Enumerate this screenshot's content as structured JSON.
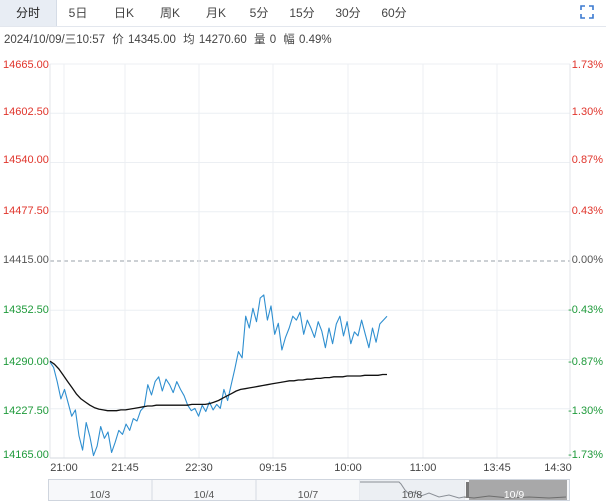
{
  "tabs": [
    "分时",
    "5日",
    "日K",
    "周K",
    "月K",
    "5分",
    "15分",
    "30分",
    "60分"
  ],
  "active_tab": 0,
  "info": {
    "datetime": "2024/10/09/三10:57",
    "price_label": "价",
    "price": "14345.00",
    "avg_label": "均",
    "avg": "14270.60",
    "vol_label": "量",
    "vol": "0",
    "chg_label": "幅",
    "chg": "0.49%"
  },
  "icons": {
    "expand": "expand-icon"
  },
  "colors": {
    "up": "#e0342b",
    "down": "#1f9a3b",
    "flat": "#555555",
    "price_line": "#2f8fd0",
    "avg_line": "#111111"
  },
  "chart_data": {
    "type": "line",
    "y_left_ticks": [
      "14665.00",
      "14602.50",
      "14540.00",
      "14477.50",
      "14415.00",
      "14352.50",
      "14290.00",
      "14227.50",
      "14165.00"
    ],
    "y_right_ticks": [
      "1.73%",
      "1.30%",
      "0.87%",
      "0.43%",
      "0.00%",
      "-0.43%",
      "-0.87%",
      "-1.30%",
      "-1.73%"
    ],
    "ylim": [
      14165.0,
      14665.0
    ],
    "prev_close": 14415.0,
    "x_tick_labels": [
      "21:00",
      "21:45",
      "22:30",
      "09:15",
      "10:00",
      "11:00",
      "13:45",
      "14:30"
    ],
    "grid": true,
    "series": [
      {
        "values": [
          14287,
          14280,
          14262,
          14240,
          14252,
          14235,
          14218,
          14226,
          14193,
          14175,
          14210,
          14192,
          14168,
          14180,
          14205,
          14190,
          14198,
          14172,
          14185,
          14200,
          14195,
          14208,
          14200,
          14215,
          14212,
          14225,
          14230,
          14258,
          14245,
          14262,
          14268,
          14250,
          14265,
          14258,
          14248,
          14262,
          14252,
          14244,
          14232,
          14225,
          14228,
          14218,
          14232,
          14224,
          14236,
          14226,
          14233,
          14228,
          14252,
          14238,
          14258,
          14278,
          14300,
          14292,
          14345,
          14330,
          14355,
          14338,
          14368,
          14372,
          14340,
          14358,
          14322,
          14336,
          14302,
          14318,
          14330,
          14345,
          14340,
          14350,
          14322,
          14340,
          14330,
          14318,
          14338,
          14326,
          14305,
          14330,
          14310,
          14335,
          14345,
          14320,
          14338,
          14310,
          14325,
          14320,
          14340,
          14322,
          14305,
          14330,
          14312,
          14335,
          14340,
          14345
        ]
      },
      {
        "values": [
          14288,
          14284,
          14278,
          14270,
          14262,
          14254,
          14246,
          14240,
          14236,
          14232,
          14229,
          14227,
          14226,
          14225,
          14225,
          14225,
          14226,
          14226,
          14227,
          14228,
          14229,
          14230,
          14231,
          14231,
          14232,
          14232,
          14232,
          14232,
          14232,
          14232,
          14232,
          14232,
          14233,
          14233,
          14233,
          14233,
          14234,
          14236,
          14238,
          14241,
          14244,
          14247,
          14250,
          14252,
          14253,
          14254,
          14255,
          14256,
          14257,
          14258,
          14259,
          14260,
          14261,
          14262,
          14263,
          14263,
          14264,
          14264,
          14265,
          14265,
          14266,
          14266,
          14267,
          14267,
          14268,
          14268,
          14268,
          14269,
          14269,
          14269,
          14269,
          14270,
          14270,
          14270,
          14270,
          14271,
          14271
        ]
      }
    ]
  },
  "navigator": {
    "days": [
      "10/3",
      "10/4",
      "10/7",
      "10/8",
      "10/9"
    ]
  }
}
